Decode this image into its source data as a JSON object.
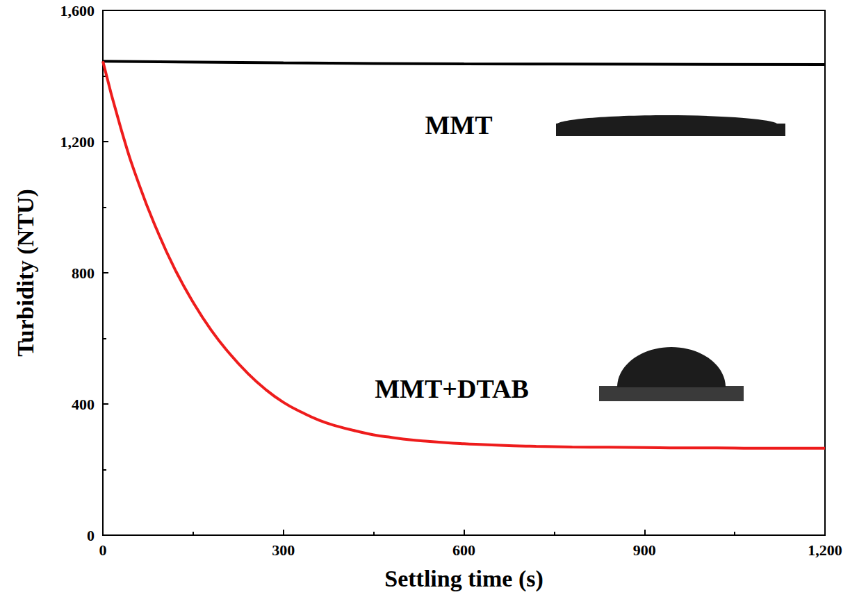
{
  "chart_data": {
    "type": "line",
    "x_label": "Settling time (s)",
    "y_label": "Turbidity (NTU)",
    "xlim": [
      0,
      1200
    ],
    "xticks": [
      0,
      300,
      600,
      900,
      1200
    ],
    "ylim": [
      0,
      1600
    ],
    "yticks": [
      0,
      400,
      800,
      1200,
      1600
    ],
    "grid": false,
    "series": [
      {
        "name": "MMT",
        "color": "#000000",
        "x": [
          0,
          300,
          600,
          900,
          1200
        ],
        "values": [
          1445,
          1440,
          1437,
          1436,
          1435
        ]
      },
      {
        "name": "MMT+DTAB",
        "color": "#ee1c1c",
        "x": [
          0,
          30,
          60,
          90,
          120,
          150,
          180,
          210,
          240,
          270,
          300,
          330,
          360,
          390,
          420,
          450,
          480,
          510,
          540,
          570,
          600,
          660,
          720,
          780,
          840,
          900,
          960,
          1020,
          1080,
          1140,
          1200
        ],
        "values": [
          1445,
          1240,
          1070,
          930,
          810,
          710,
          625,
          555,
          495,
          445,
          405,
          375,
          350,
          332,
          318,
          306,
          298,
          291,
          286,
          282,
          279,
          274,
          271,
          269,
          268,
          267,
          266,
          266,
          265,
          265,
          265
        ]
      }
    ]
  }
}
